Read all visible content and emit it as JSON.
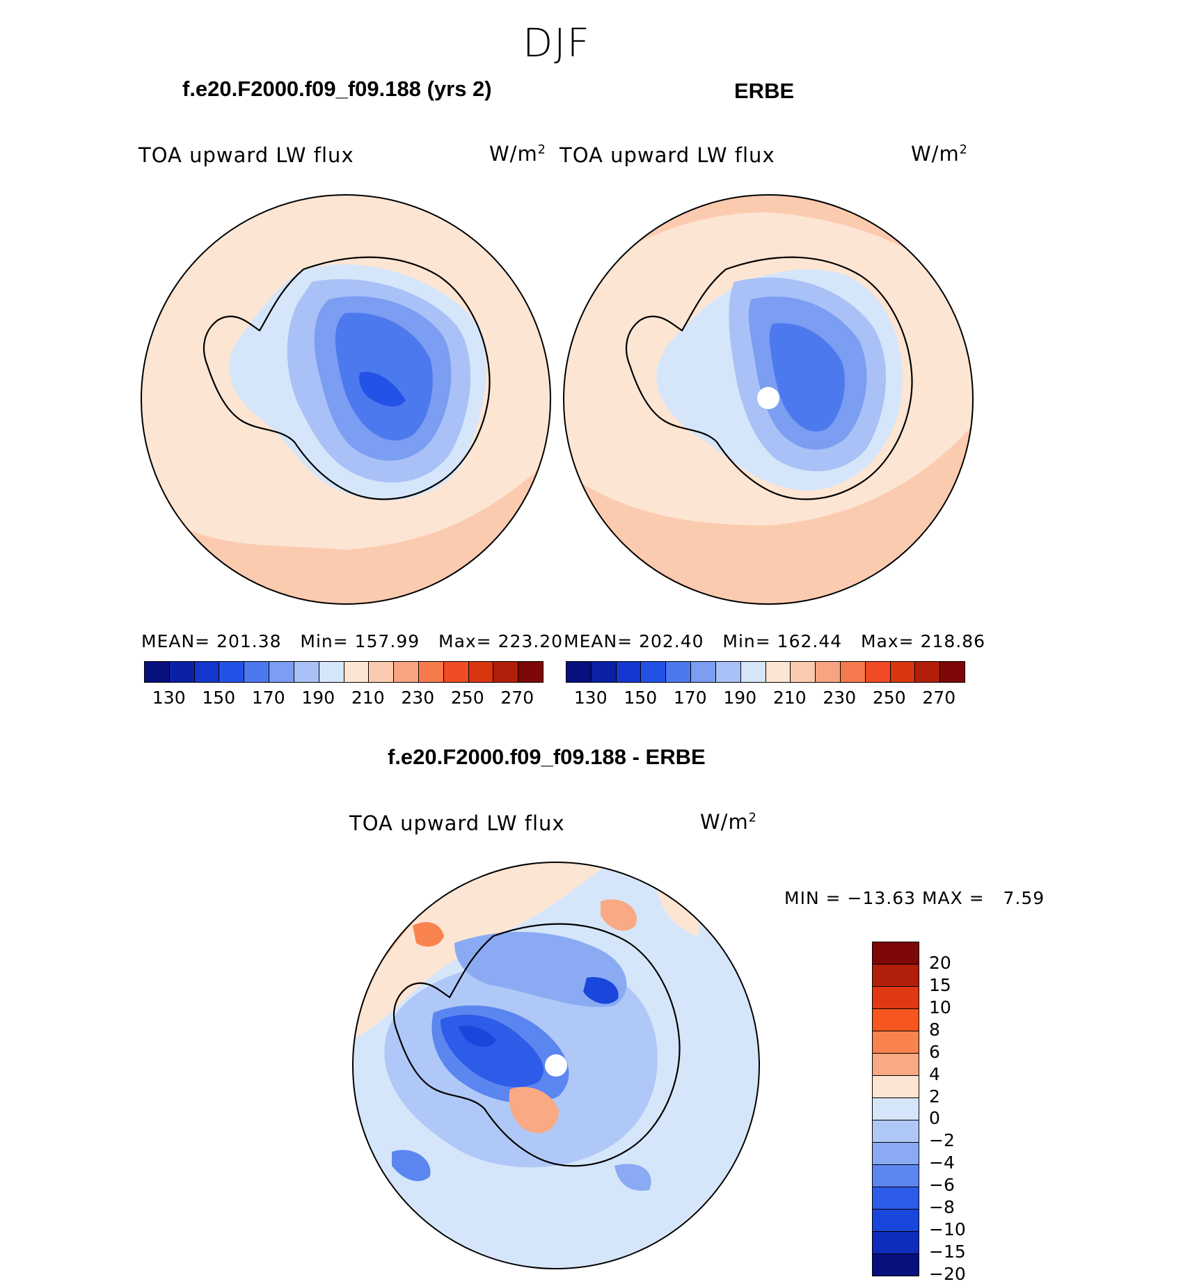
{
  "figure": {
    "season": "DJF",
    "variable_label": "TOA upward LW flux",
    "units": "W/m",
    "units_exp": "2"
  },
  "panels": {
    "model": {
      "title": "f.e20.F2000.f09_f09.188 (yrs 2)",
      "mean_label": "MEAN=",
      "mean": "201.38",
      "min_label": "Min=",
      "min": "157.99",
      "max_label": "Max=",
      "max": "223.20"
    },
    "obs": {
      "title": "ERBE",
      "mean_label": "MEAN=",
      "mean": "202.40",
      "min_label": "Min=",
      "min": "162.44",
      "max_label": "Max=",
      "max": "218.86"
    },
    "diff": {
      "title": "f.e20.F2000.f09_f09.188 - ERBE",
      "min_label": "MIN =",
      "min": "−13.63",
      "max_label": "MAX =",
      "max": "7.59"
    }
  },
  "colorbar_abs": {
    "colors": [
      "#08107e",
      "#0a21a6",
      "#1437cf",
      "#2352e6",
      "#4d79ee",
      "#7b9df2",
      "#a9c1f6",
      "#d6e6fa",
      "#fde5d3",
      "#fbcbb0",
      "#f8a482",
      "#f57a4e",
      "#f04b25",
      "#d9350f",
      "#b11f0a",
      "#7e0707"
    ],
    "labels": [
      "130",
      "150",
      "170",
      "190",
      "210",
      "230",
      "250",
      "270"
    ]
  },
  "colorbar_diff": {
    "colors": [
      "#7e0707",
      "#b11f0a",
      "#e03812",
      "#f7571e",
      "#f8834f",
      "#f9a983",
      "#fde5d3",
      "#d6e6fa",
      "#b0c8f7",
      "#8aabf3",
      "#5c86ef",
      "#2c5ce8",
      "#1a46dc",
      "#0e2dbd",
      "#08107e"
    ],
    "labels": [
      "20",
      "15",
      "10",
      "8",
      "6",
      "4",
      "2",
      "0",
      "−2",
      "−4",
      "−6",
      "−8",
      "−10",
      "−15",
      "−20"
    ]
  }
}
